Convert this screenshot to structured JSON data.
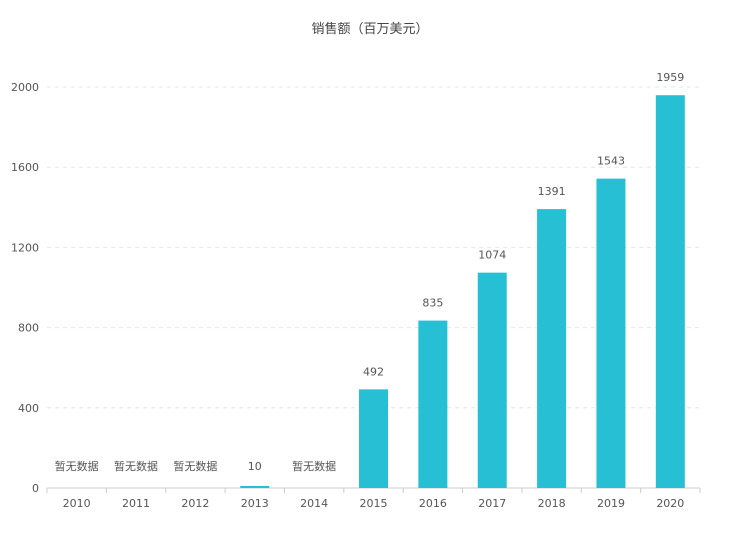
{
  "chart_data": {
    "type": "bar",
    "title": "销售额（百万美元）",
    "categories": [
      "2010",
      "2011",
      "2012",
      "2013",
      "2014",
      "2015",
      "2016",
      "2017",
      "2018",
      "2019",
      "2020"
    ],
    "values": [
      null,
      null,
      null,
      10,
      null,
      492,
      835,
      1074,
      1391,
      1543,
      1959
    ],
    "data_labels": [
      "暂无数据",
      "暂无数据",
      "暂无数据",
      "10",
      "暂无数据",
      "492",
      "835",
      "1074",
      "1391",
      "1543",
      "1959"
    ],
    "ylim": [
      0,
      2000
    ],
    "yticks": [
      0,
      400,
      800,
      1200,
      1600,
      2000
    ],
    "grid": true,
    "xlabel": "",
    "ylabel": ""
  },
  "colors": {
    "bar": "#26bfd4",
    "grid": "#e6e6e6",
    "axis": "#cccccc",
    "text": "#555555"
  }
}
